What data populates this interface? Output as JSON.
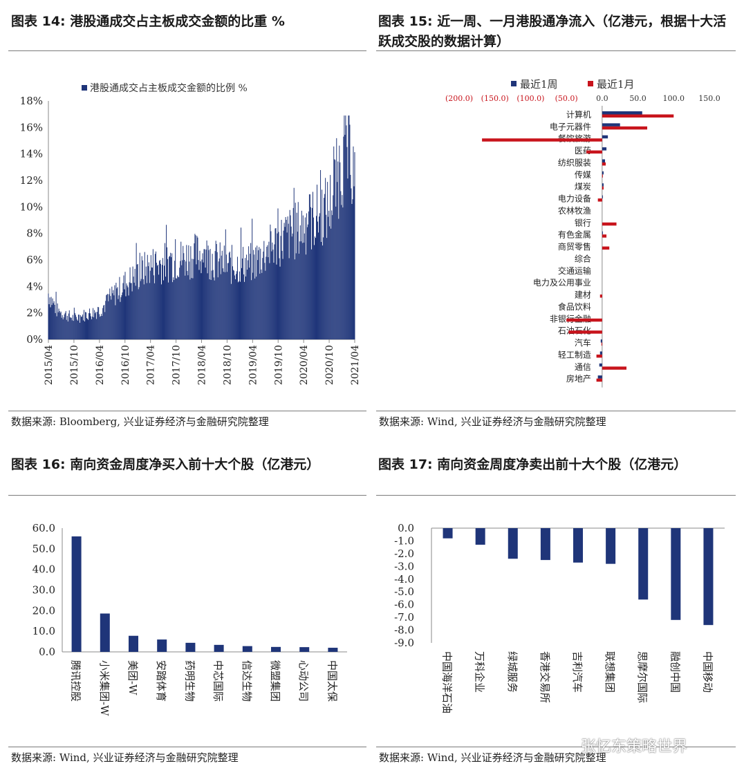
{
  "panels": {
    "p14": {
      "title": "图表 14:  港股通成交占主板成交金额的比重  %",
      "source": "数据来源:  Bloomberg,  兴业证券经济与金融研究院整理"
    },
    "p15": {
      "title": "图表 15:  近一周、一月港股通净流入（亿港元，根据十大活跃成交股的数据计算）",
      "source": "数据来源:  Wind,  兴业证券经济与金融研究院整理"
    },
    "p16": {
      "title": "图表 16:  南向资金周度净买入前十大个股（亿港元）",
      "source": "数据来源:  Wind,  兴业证券经济与金融研究院整理"
    },
    "p17": {
      "title": "图表 17:  南向资金周度净卖出前十大个股（亿港元）",
      "source": "数据来源:  Wind,  兴业证券经济与金融研究院整理"
    }
  },
  "watermark": "张忆东策略世界",
  "colors": {
    "navy": "#1f3579",
    "red": "#c8141c",
    "axis": "#8a8a8a"
  },
  "chart_data": [
    {
      "id": "c14",
      "type": "bar",
      "legend": "港股通成交占主板成交金额的比例 %",
      "legend_position": "top",
      "ylim": [
        0,
        18
      ],
      "yticks": [
        "0%",
        "2%",
        "4%",
        "6%",
        "8%",
        "10%",
        "12%",
        "14%",
        "16%",
        "18%"
      ],
      "xticks": [
        "2015/04",
        "2015/10",
        "2016/04",
        "2016/10",
        "2017/04",
        "2017/10",
        "2018/04",
        "2018/10",
        "2019/04",
        "2019/10",
        "2020/04",
        "2020/10",
        "2021/04"
      ],
      "trend": {
        "dates": [
          "2015/04",
          "2015/06",
          "2015/10",
          "2016/04",
          "2016/10",
          "2017/04",
          "2017/10",
          "2018/04",
          "2018/10",
          "2019/04",
          "2019/10",
          "2020/04",
          "2020/10",
          "2021/01",
          "2021/02",
          "2021/04"
        ],
        "values": [
          3.5,
          2.2,
          1.6,
          2.2,
          4.2,
          5.6,
          6.0,
          6.5,
          5.6,
          5.8,
          7.4,
          8.6,
          10.0,
          13.5,
          14.5,
          12.5
        ]
      }
    },
    {
      "id": "c15",
      "type": "bar",
      "orientation": "horizontal",
      "series": [
        {
          "name": "最近1周"
        },
        {
          "name": "最近1月"
        }
      ],
      "xticks": [
        "(200.0)",
        "(150.0)",
        "(100.0)",
        "(50.0)",
        "0.0",
        "50.0",
        "100.0",
        "150.0"
      ],
      "xlim": [
        -200,
        150
      ],
      "categories": [
        "计算机",
        "电子元器件",
        "餐饮旅游",
        "医药",
        "纺织服装",
        "传媒",
        "煤炭",
        "电力设备",
        "农林牧渔",
        "银行",
        "有色金属",
        "商贸零售",
        "综合",
        "交通运输",
        "电力及公用事业",
        "建材",
        "食品饮料",
        "非银行金融",
        "石油石化",
        "汽车",
        "轻工制造",
        "通信",
        "房地产"
      ],
      "week": [
        56,
        25,
        8,
        6,
        4,
        2,
        2,
        1,
        0,
        0,
        1,
        0,
        0,
        0,
        0,
        0,
        0,
        0,
        0,
        -2,
        -3,
        -4,
        -6
      ],
      "month": [
        100,
        63,
        -168,
        -22,
        5,
        1,
        2,
        -6,
        0,
        20,
        6,
        10,
        0,
        0,
        0,
        -3,
        0,
        -50,
        -47,
        -1,
        -8,
        34,
        -8
      ]
    },
    {
      "id": "c16",
      "type": "bar",
      "ylim": [
        0,
        60
      ],
      "yticks": [
        "0.0",
        "10.0",
        "20.0",
        "30.0",
        "40.0",
        "50.0",
        "60.0"
      ],
      "categories": [
        "腾讯控股",
        "小米集团-W",
        "美团-W",
        "安踏体育",
        "药明生物",
        "中芯国际",
        "信达生物",
        "微盟集团",
        "心动公司",
        "中国太保"
      ],
      "values": [
        56.0,
        18.6,
        7.8,
        6.0,
        4.4,
        3.4,
        2.8,
        2.4,
        2.3,
        2.0
      ]
    },
    {
      "id": "c17",
      "type": "bar",
      "ylim": [
        -9,
        0
      ],
      "yticks": [
        "0.0",
        "-1.0",
        "-2.0",
        "-3.0",
        "-4.0",
        "-5.0",
        "-6.0",
        "-7.0",
        "-8.0",
        "-9.0"
      ],
      "categories": [
        "中国海洋石油",
        "万科企业",
        "绿城服务",
        "香港交易所",
        "吉利汽车",
        "联想集团",
        "思摩尔国际",
        "融创中国",
        "中国移动"
      ],
      "values": [
        -0.8,
        -1.3,
        -2.4,
        -2.5,
        -2.7,
        -2.8,
        -5.6,
        -7.2,
        -7.6
      ]
    }
  ]
}
